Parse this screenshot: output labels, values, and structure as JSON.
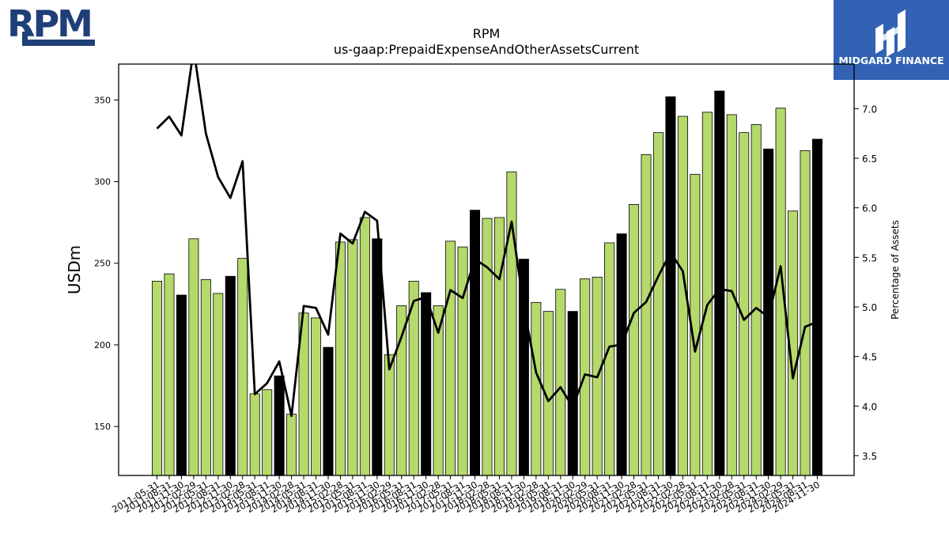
{
  "logo_left": {
    "text": "RPM",
    "color": "#1f3f78"
  },
  "logo_right": {
    "text": "MIDGARD FINANCE",
    "bg": "#3262b3"
  },
  "chart_data": {
    "type": "bar",
    "title": "RPM",
    "subtitle": "us-gaap:PrepaidExpenseAndOtherAssetsCurrent",
    "ylabel": "USDm",
    "y2label": "Percentage of Assets",
    "ylim": [
      120,
      372
    ],
    "y2lim": [
      3.3,
      7.45
    ],
    "yticks": [
      "150",
      "200",
      "250",
      "300",
      "350"
    ],
    "y2ticks": [
      "3.5",
      "4.0",
      "4.5",
      "5.0",
      "5.5",
      "6.0",
      "6.5",
      "7.0"
    ],
    "colors": {
      "bar": "#b5d96b",
      "bar_fy": "#000000",
      "line": "#000000"
    },
    "categories": [
      "2011-05-31",
      "2011-08-31",
      "2011-11-30",
      "2012-02-29",
      "2012-05-31",
      "2012-08-31",
      "2012-11-30",
      "2013-02-28",
      "2013-05-31",
      "2013-08-31",
      "2013-11-30",
      "2014-02-28",
      "2014-05-31",
      "2014-08-31",
      "2014-11-30",
      "2015-02-28",
      "2015-05-31",
      "2015-08-31",
      "2015-11-30",
      "2016-02-29",
      "2016-05-31",
      "2016-08-31",
      "2016-11-30",
      "2017-02-28",
      "2017-05-31",
      "2017-08-31",
      "2017-11-30",
      "2018-02-28",
      "2018-05-31",
      "2018-08-31",
      "2018-11-30",
      "2019-02-28",
      "2019-05-31",
      "2019-08-31",
      "2019-11-30",
      "2020-02-29",
      "2020-05-31",
      "2020-08-31",
      "2020-11-30",
      "2021-02-28",
      "2021-05-31",
      "2021-08-31",
      "2021-11-30",
      "2022-02-28",
      "2022-05-31",
      "2022-08-31",
      "2022-11-30",
      "2023-02-28",
      "2023-05-31",
      "2023-08-31",
      "2023-11-30",
      "2024-02-29",
      "2024-05-31",
      "2024-08-31",
      "2024-11-30"
    ],
    "xticks_shown": [
      "2011-05-31",
      "2011-08-31",
      "2011-11-30",
      "2012-02-29",
      "2012-05-31",
      "2012-08-31",
      "2012-11-30",
      "2013-02-28",
      "2013-05-31",
      "2013-08-31",
      "2013-11-30",
      "2014-02-28",
      "2014-05-31",
      "2014-08-31",
      "2014-11-30",
      "2015-02-28",
      "2015-05-31",
      "2015-08-31",
      "2015-11-30",
      "2016-02-29",
      "2016-05-31",
      "2016-08-31",
      "2016-11-30",
      "2017-02-28",
      "2017-05-31",
      "2017-08-31",
      "2017-11-30",
      "2018-02-28",
      "2018-05-31",
      "2018-08-31",
      "2018-11-30",
      "2019-02-28",
      "2019-05-31",
      "2019-08-31",
      "2019-11-30",
      "2020-02-29",
      "2020-05-31",
      "2020-08-31",
      "2020-11-30",
      "2021-02-28",
      "2021-05-31",
      "2021-08-31",
      "2021-11-30",
      "2022-02-28",
      "2022-05-31",
      "2022-08-31",
      "2022-11-30",
      "2023-02-28",
      "2023-05-31",
      "2023-08-31",
      "2023-11-30",
      "2024-02-29",
      "2024-05-31",
      "2024-08-31",
      "2024-11-30"
    ],
    "values": [
      239,
      243.5,
      230.5,
      265,
      240,
      231.5,
      242,
      253,
      170,
      172.5,
      181,
      157.5,
      219.5,
      216.5,
      198.5,
      263,
      264.5,
      278,
      265,
      194,
      224,
      239,
      232,
      224,
      263.5,
      260,
      282.5,
      277.5,
      278,
      306,
      252.5,
      226,
      220.5,
      234,
      220.5,
      240.5,
      241.5,
      262.5,
      268,
      286,
      316.5,
      330,
      352,
      340,
      304.5,
      342.5,
      355.5,
      341,
      330,
      335,
      320,
      345,
      282,
      319,
      326
    ],
    "fy_end": [
      false,
      false,
      true,
      false,
      false,
      false,
      true,
      false,
      false,
      false,
      true,
      false,
      false,
      false,
      true,
      false,
      false,
      false,
      true,
      false,
      false,
      false,
      true,
      false,
      false,
      false,
      true,
      false,
      false,
      false,
      true,
      false,
      false,
      false,
      true,
      false,
      false,
      false,
      true,
      false,
      false,
      false,
      true,
      false,
      false,
      false,
      true,
      false,
      false,
      false,
      true,
      false,
      false,
      false,
      true
    ],
    "pct_of_assets": [
      6.8,
      6.92,
      6.73,
      7.6,
      6.75,
      6.31,
      6.1,
      6.47,
      4.12,
      4.23,
      4.45,
      3.9,
      5.01,
      4.99,
      4.72,
      5.74,
      5.64,
      5.96,
      5.87,
      4.37,
      4.7,
      5.06,
      5.1,
      4.74,
      5.17,
      5.09,
      5.48,
      5.4,
      5.28,
      5.86,
      5.0,
      4.34,
      4.05,
      4.19,
      3.99,
      4.32,
      4.29,
      4.6,
      4.62,
      4.94,
      5.05,
      5.31,
      5.55,
      5.36,
      4.55,
      5.02,
      5.18,
      5.16,
      4.87,
      4.99,
      4.9,
      5.41,
      4.28,
      4.8,
      4.85
    ]
  }
}
